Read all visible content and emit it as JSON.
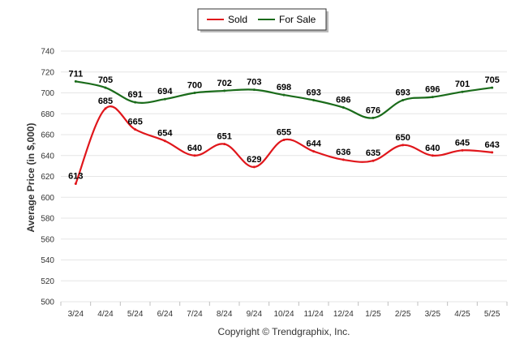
{
  "chart_data": {
    "type": "line",
    "categories": [
      "3/24",
      "4/24",
      "5/24",
      "6/24",
      "7/24",
      "8/24",
      "9/24",
      "10/24",
      "11/24",
      "12/24",
      "1/25",
      "2/25",
      "3/25",
      "4/25",
      "5/25"
    ],
    "series": [
      {
        "name": "Sold",
        "color": "#e0161b",
        "values": [
          613,
          685,
          665,
          654,
          640,
          651,
          629,
          655,
          644,
          636,
          635,
          650,
          640,
          645,
          643
        ]
      },
      {
        "name": "For Sale",
        "color": "#1a6b1a",
        "values": [
          711,
          705,
          691,
          694,
          700,
          702,
          703,
          698,
          693,
          686,
          676,
          693,
          696,
          701,
          705
        ]
      }
    ],
    "ylabel": "Average Price (in $,000)",
    "xlabel": "",
    "ylim": [
      500,
      740
    ],
    "yticks": [
      500,
      520,
      540,
      560,
      580,
      600,
      620,
      640,
      660,
      680,
      700,
      720,
      740
    ],
    "grid": true,
    "legend": "top-center",
    "credit": "Copyright © Trendgraphix, Inc."
  }
}
